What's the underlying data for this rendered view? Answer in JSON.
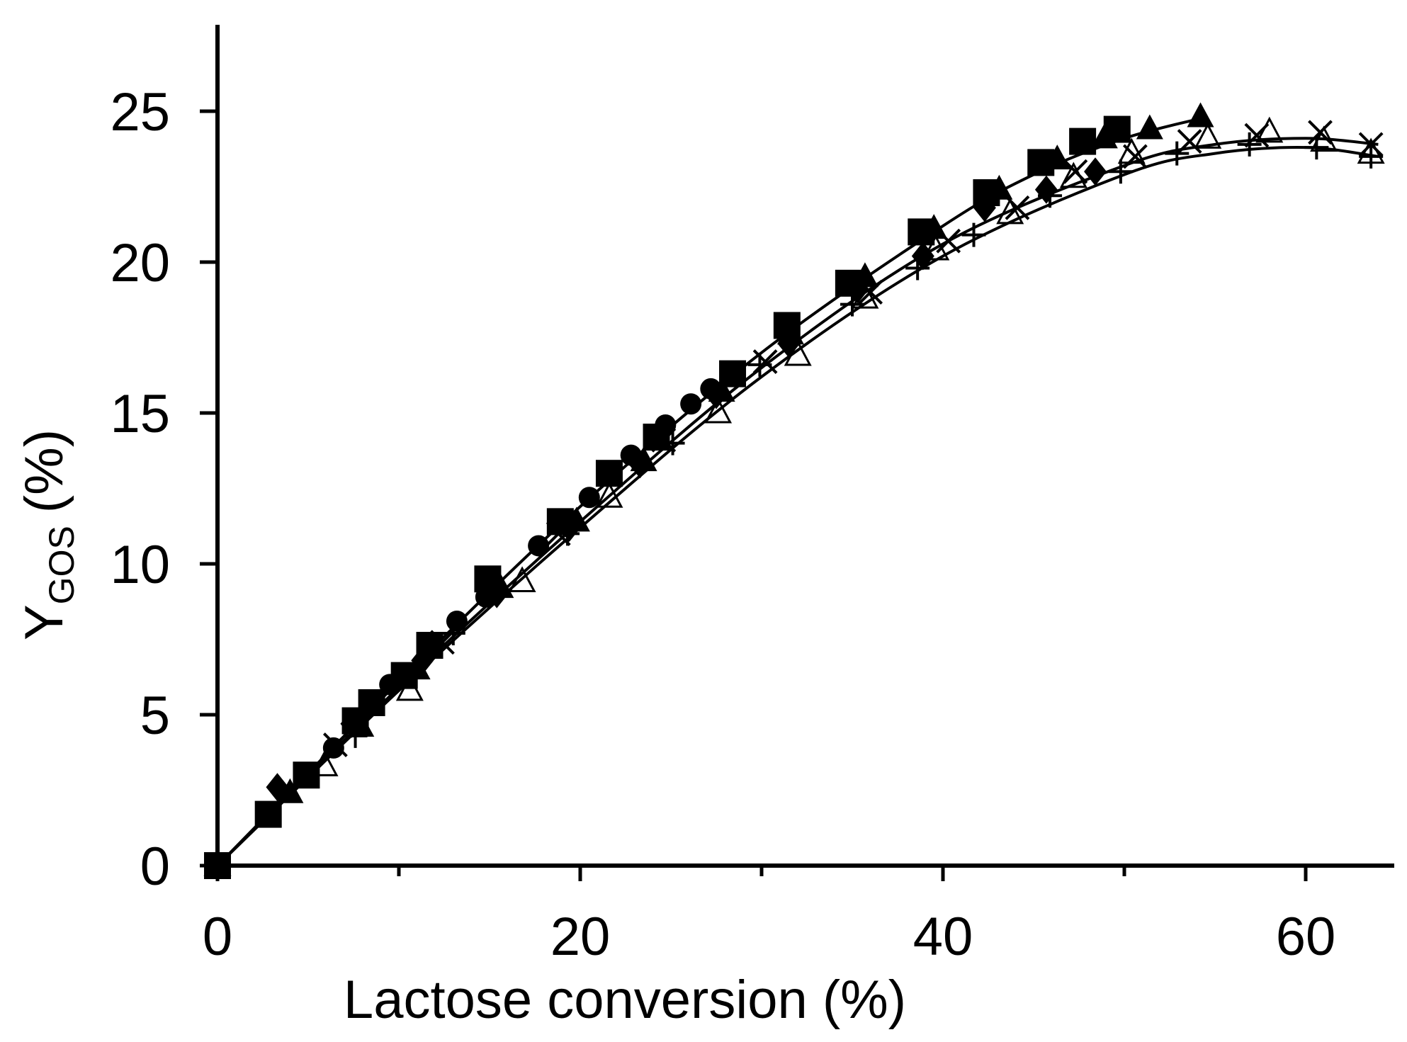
{
  "chart_data": {
    "type": "scatter",
    "title": "",
    "xlabel": "Lactose conversion (%)",
    "ylabel_main": "Y",
    "ylabel_sub": "GOS",
    "ylabel_unit": "(%)",
    "xlim": [
      0,
      65
    ],
    "ylim": [
      0,
      28
    ],
    "x_ticks": [
      0,
      20,
      40,
      60
    ],
    "x_minor_ticks": [
      10,
      30,
      50
    ],
    "y_ticks": [
      0,
      5,
      10,
      15,
      20,
      25
    ],
    "x_tick_labels": [
      "0",
      "20",
      "40",
      "60"
    ],
    "y_tick_labels": [
      "0",
      "5",
      "10",
      "15",
      "20",
      "25"
    ],
    "grid": false,
    "legend": "none",
    "colors": {
      "ink": "#000000",
      "background": "#ffffff"
    },
    "series": [
      {
        "marker": "circle",
        "x": [
          0,
          6.4,
          9.5,
          13.2,
          14.8,
          17.7,
          20.5,
          22.8,
          24.7,
          26.1,
          27.2
        ],
        "y": [
          0,
          3.9,
          6.0,
          8.1,
          8.9,
          10.6,
          12.2,
          13.6,
          14.6,
          15.3,
          15.8
        ]
      },
      {
        "marker": "square",
        "x": [
          0,
          2.8,
          4.9,
          7.6,
          8.5,
          10.3,
          11.7,
          14.9,
          18.9,
          21.6,
          24.2,
          28.4,
          31.4,
          34.8,
          38.8,
          42.4,
          45.4,
          47.7,
          49.6
        ],
        "y": [
          0,
          1.7,
          3.0,
          4.8,
          5.4,
          6.3,
          7.3,
          9.5,
          11.4,
          13.0,
          14.2,
          16.3,
          17.9,
          19.3,
          21.0,
          22.3,
          23.3,
          24.0,
          24.4
        ]
      },
      {
        "marker": "triangle-filled",
        "x": [
          0,
          4.0,
          7.9,
          11.0,
          15.6,
          19.8,
          23.5,
          27.8,
          31.6,
          35.7,
          39.5,
          43.1,
          46.3,
          48.9,
          51.4,
          54.2
        ],
        "y": [
          0,
          2.4,
          4.6,
          6.5,
          9.2,
          11.4,
          13.4,
          15.7,
          17.6,
          19.5,
          21.1,
          22.4,
          23.4,
          24.1,
          24.4,
          24.8
        ]
      },
      {
        "marker": "diamond",
        "x": [
          0,
          3.3,
          7.4,
          11.3,
          15.4,
          19.4,
          23.3,
          27.5,
          31.5,
          35.3,
          38.9,
          42.3,
          45.7,
          48.4
        ],
        "y": [
          0,
          2.6,
          4.7,
          6.8,
          9.0,
          11.2,
          13.3,
          15.6,
          17.3,
          19.1,
          20.2,
          21.8,
          22.4,
          23.0
        ]
      },
      {
        "marker": "triangle-open",
        "x": [
          0,
          5.9,
          10.6,
          16.8,
          21.6,
          27.6,
          32.0,
          35.7,
          39.6,
          43.7,
          47.2,
          50.4,
          54.6,
          58.0,
          61.0,
          63.6
        ],
        "y": [
          0,
          3.3,
          5.8,
          9.4,
          12.2,
          15.0,
          16.9,
          18.8,
          20.4,
          21.6,
          22.8,
          23.6,
          24.1,
          24.3,
          24.0,
          23.6
        ]
      },
      {
        "marker": "cross",
        "x": [
          0,
          6.5,
          12.4,
          18.8,
          24.6,
          30.2,
          36.0,
          40.3,
          44.1,
          47.3,
          50.6,
          53.6,
          57.3,
          60.8,
          63.6
        ],
        "y": [
          0,
          4.0,
          7.4,
          11.0,
          14.1,
          16.7,
          19.0,
          20.7,
          21.8,
          23.0,
          23.5,
          24.0,
          24.2,
          24.3,
          23.9
        ]
      },
      {
        "marker": "plus",
        "x": [
          0,
          7.6,
          13.0,
          19.3,
          25.1,
          29.9,
          35.0,
          38.6,
          41.7,
          45.9,
          49.8,
          52.9,
          56.9,
          60.6,
          63.6
        ],
        "y": [
          0,
          4.3,
          7.7,
          11.0,
          14.0,
          16.6,
          18.6,
          19.8,
          20.9,
          22.2,
          23.0,
          23.6,
          23.9,
          23.8,
          23.5
        ]
      }
    ],
    "fit_curves": [
      {
        "x": [
          0,
          10,
          20,
          30,
          40,
          45,
          50,
          54.5
        ],
        "y": [
          0,
          6.1,
          11.9,
          17.0,
          21.2,
          22.9,
          24.1,
          24.8
        ]
      },
      {
        "x": [
          0,
          10,
          20,
          30,
          40,
          50,
          55,
          60,
          64
        ],
        "y": [
          0,
          5.9,
          11.4,
          16.5,
          20.6,
          23.2,
          23.9,
          24.1,
          23.9
        ]
      },
      {
        "x": [
          0,
          10,
          20,
          30,
          40,
          50,
          55,
          60,
          64
        ],
        "y": [
          0,
          5.8,
          11.2,
          16.2,
          20.2,
          22.9,
          23.6,
          23.8,
          23.5
        ]
      }
    ]
  }
}
